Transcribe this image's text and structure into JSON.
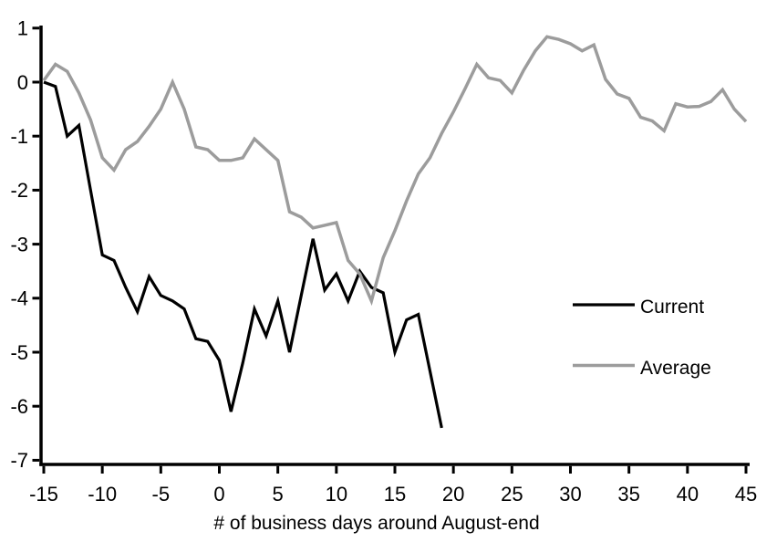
{
  "chart_data": {
    "type": "line",
    "title": "",
    "xlabel": "# of business days around August-end",
    "ylabel": "",
    "xlim": [
      -15,
      45
    ],
    "ylim": [
      -7,
      1
    ],
    "x_ticks": [
      -15,
      -10,
      -5,
      0,
      5,
      10,
      15,
      20,
      25,
      30,
      35,
      40,
      45
    ],
    "y_ticks": [
      1,
      0,
      -1,
      -2,
      -3,
      -4,
      -5,
      -6,
      -7
    ],
    "grid": false,
    "legend_position": "right-middle",
    "series": [
      {
        "name": "Current",
        "color": "#000000",
        "x": [
          -15,
          -14,
          -13,
          -12,
          -11,
          -10,
          -9,
          -8,
          -7,
          -6,
          -5,
          -4,
          -3,
          -2,
          -1,
          0,
          1,
          2,
          3,
          4,
          5,
          6,
          7,
          8,
          9,
          10,
          11,
          12,
          13,
          14,
          15,
          16,
          17,
          18,
          19
        ],
        "values": [
          0,
          -0.08,
          -1.0,
          -0.8,
          -2.0,
          -3.2,
          -3.3,
          -3.8,
          -4.25,
          -3.6,
          -3.95,
          -4.05,
          -4.2,
          -4.75,
          -4.8,
          -5.15,
          -6.1,
          -5.2,
          -4.2,
          -4.7,
          -4.05,
          -5.0,
          -3.95,
          -2.9,
          -3.85,
          -3.55,
          -4.05,
          -3.5,
          -3.8,
          -3.9,
          -5.0,
          -4.4,
          -4.3,
          -5.35,
          -6.4
        ]
      },
      {
        "name": "Average",
        "color": "#9c9c9c",
        "x": [
          -15,
          -14,
          -13,
          -12,
          -11,
          -10,
          -9,
          -8,
          -7,
          -6,
          -5,
          -4,
          -3,
          -2,
          -1,
          0,
          1,
          2,
          3,
          4,
          5,
          6,
          7,
          8,
          9,
          10,
          11,
          12,
          13,
          14,
          15,
          16,
          17,
          18,
          19,
          20,
          21,
          22,
          23,
          24,
          25,
          26,
          27,
          28,
          29,
          30,
          31,
          32,
          33,
          34,
          35,
          36,
          37,
          38,
          39,
          40,
          41,
          42,
          43,
          44,
          45
        ],
        "values": [
          0.03,
          0.33,
          0.2,
          -0.2,
          -0.7,
          -1.4,
          -1.63,
          -1.25,
          -1.1,
          -0.82,
          -0.5,
          0.0,
          -0.5,
          -1.2,
          -1.25,
          -1.45,
          -1.45,
          -1.4,
          -1.05,
          -1.25,
          -1.45,
          -2.4,
          -2.5,
          -2.7,
          -2.65,
          -2.6,
          -3.3,
          -3.55,
          -4.05,
          -3.25,
          -2.75,
          -2.2,
          -1.7,
          -1.4,
          -0.95,
          -0.55,
          -0.12,
          0.33,
          0.08,
          0.03,
          -0.2,
          0.22,
          0.58,
          0.84,
          0.79,
          0.71,
          0.58,
          0.69,
          0.05,
          -0.22,
          -0.3,
          -0.65,
          -0.72,
          -0.9,
          -0.4,
          -0.46,
          -0.45,
          -0.36,
          -0.14,
          -0.5,
          -0.73
        ]
      }
    ]
  },
  "axis_color": "#000000"
}
